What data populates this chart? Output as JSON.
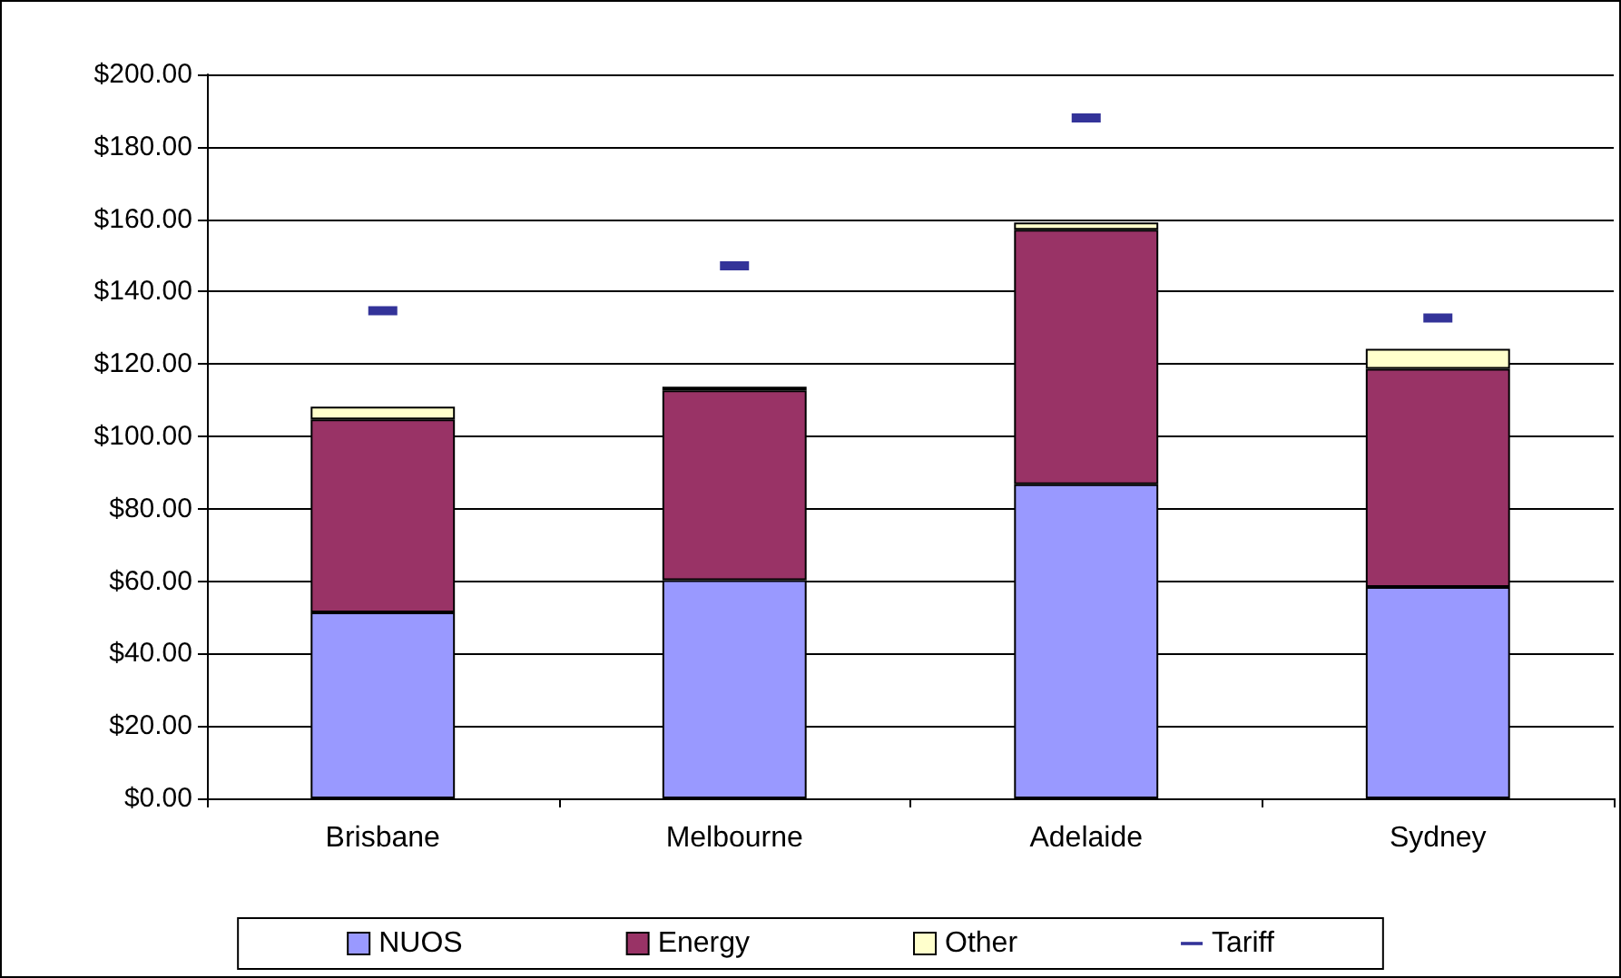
{
  "chart_data": {
    "type": "bar",
    "stacked": true,
    "categories": [
      "Brisbane",
      "Melbourne",
      "Adelaide",
      "Sydney"
    ],
    "series": [
      {
        "name": "NUOS",
        "color": "#9999ff",
        "values": [
          51.4,
          60.3,
          86.8,
          58.4
        ]
      },
      {
        "name": "Energy",
        "color": "#993366",
        "values": [
          53.3,
          52.4,
          70.3,
          60.3
        ]
      },
      {
        "name": "Other",
        "color": "#ffffcc",
        "values": [
          3.5,
          1.0,
          2.0,
          5.5
        ]
      },
      {
        "name": "Tariff",
        "type": "scatter",
        "color": "#000080",
        "values": [
          134.7,
          147.1,
          188.0,
          132.7
        ]
      }
    ],
    "ylim": [
      0,
      200
    ],
    "yticks": [
      {
        "value": 0,
        "label": "$0.00"
      },
      {
        "value": 20,
        "label": "$20.00"
      },
      {
        "value": 40,
        "label": "$40.00"
      },
      {
        "value": 60,
        "label": "$60.00"
      },
      {
        "value": 80,
        "label": "$80.00"
      },
      {
        "value": 100,
        "label": "$100.00"
      },
      {
        "value": 120,
        "label": "$120.00"
      },
      {
        "value": 140,
        "label": "$140.00"
      },
      {
        "value": 160,
        "label": "$160.00"
      },
      {
        "value": 180,
        "label": "$180.00"
      },
      {
        "value": 200,
        "label": "$200.00"
      }
    ],
    "grid": "y",
    "legend": "bottom"
  }
}
